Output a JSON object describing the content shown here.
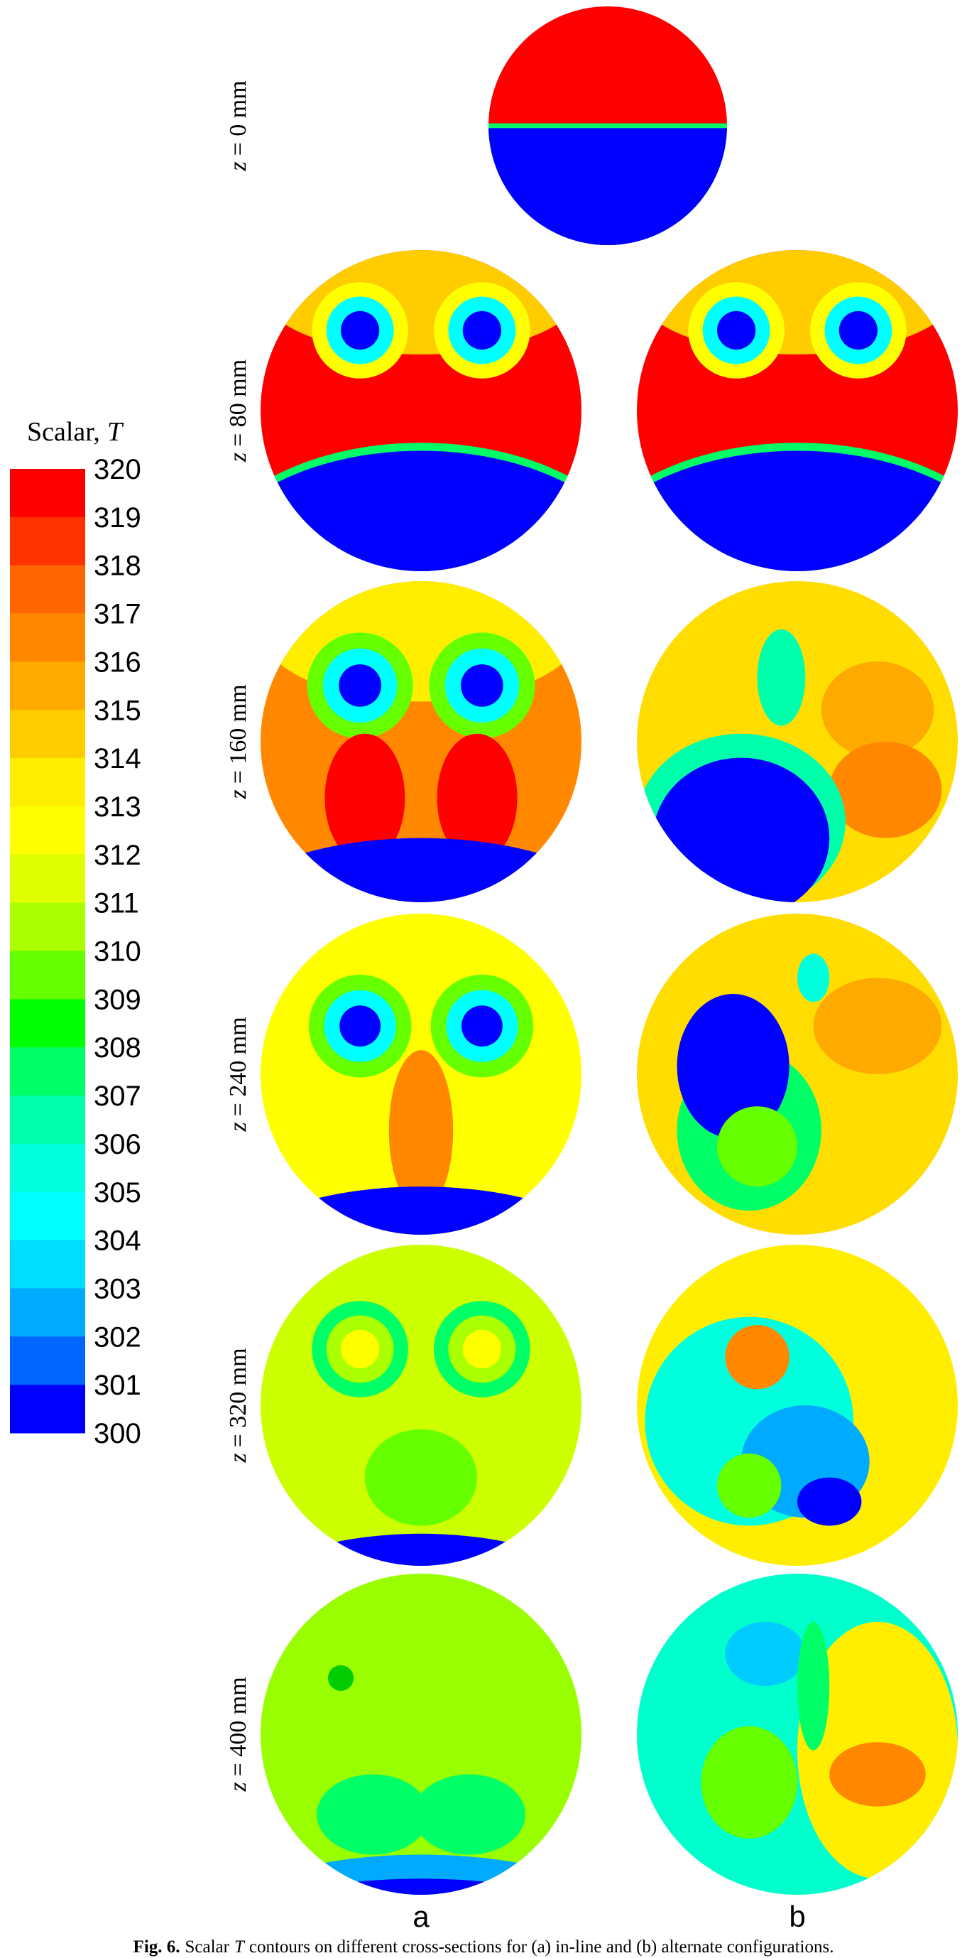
{
  "colorbar": {
    "title": "Scalar,",
    "title_var": "T",
    "ticks": [
      "320",
      "319",
      "318",
      "317",
      "316",
      "315",
      "314",
      "313",
      "312",
      "311",
      "310",
      "309",
      "308",
      "307",
      "306",
      "305",
      "304",
      "303",
      "302",
      "301",
      "300"
    ],
    "colors": [
      "#ff0000",
      "#ff3300",
      "#ff6600",
      "#ff8800",
      "#ffaa00",
      "#ffcc00",
      "#ffee00",
      "#ffff00",
      "#ddff00",
      "#aaff00",
      "#66ff00",
      "#00ff00",
      "#00ff66",
      "#00ffaa",
      "#00ffdd",
      "#00ffff",
      "#00ddff",
      "#00aaff",
      "#0066ff",
      "#0000ff"
    ]
  },
  "rows": [
    {
      "var": "z",
      "label": "= 0 mm"
    },
    {
      "var": "z",
      "label": "= 80 mm"
    },
    {
      "var": "z",
      "label": "= 160 mm"
    },
    {
      "var": "z",
      "label": "= 240 mm"
    },
    {
      "var": "z",
      "label": "= 320 mm"
    },
    {
      "var": "z",
      "label": "= 400 mm"
    }
  ],
  "columns": [
    "a",
    "b"
  ],
  "caption": {
    "label": "Fig. 6.",
    "text1": "Scalar",
    "var": "T",
    "text2": "contours on different cross-sections for (a) in-line and (b) alternate configurations."
  }
}
